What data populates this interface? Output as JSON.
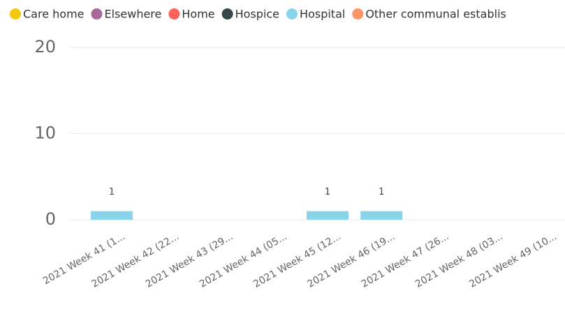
{
  "chart_data": {
    "type": "stacked_bar",
    "categories": [
      "2021 Week 41 (1...",
      "2021 Week 42 (22...",
      "2021 Week 43 (29...",
      "2021 Week 44 (05...",
      "2021 Week 45 (12...",
      "2021 Week 46 (19...",
      "2021 Week 47 (26...",
      "2021 Week 48 (03...",
      "2021 Week 49 (10..."
    ],
    "series": [
      {
        "name": "Care home",
        "color": "#F2C80F",
        "values": [
          null,
          null,
          null,
          null,
          null,
          null,
          null,
          null,
          null
        ]
      },
      {
        "name": "Elsewhere",
        "color": "#A66999",
        "values": [
          null,
          null,
          null,
          null,
          null,
          null,
          null,
          null,
          null
        ]
      },
      {
        "name": "Home",
        "color": "#FD625E",
        "values": [
          null,
          null,
          null,
          null,
          null,
          null,
          null,
          null,
          null
        ]
      },
      {
        "name": "Hospice",
        "color": "#374649",
        "values": [
          null,
          null,
          null,
          null,
          null,
          null,
          null,
          null,
          null
        ]
      },
      {
        "name": "Hospital",
        "color": "#8AD4EB",
        "values": [
          1,
          null,
          null,
          null,
          1,
          1,
          null,
          null,
          null
        ]
      },
      {
        "name": "Other communal establis",
        "color": "#FE9666",
        "values": [
          null,
          null,
          null,
          null,
          null,
          null,
          null,
          null,
          null
        ]
      }
    ],
    "ylim": [
      0,
      20
    ],
    "yticks": [
      0,
      10,
      20
    ],
    "grid": true
  }
}
